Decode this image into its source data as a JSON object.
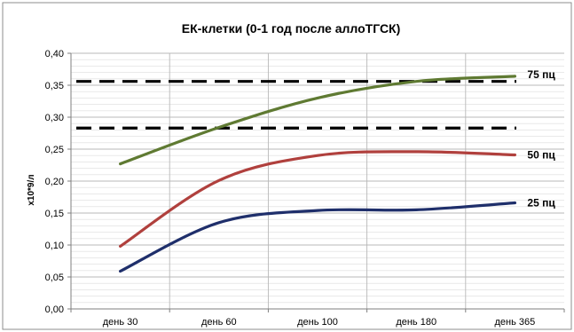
{
  "chart_data": {
    "type": "line",
    "title": "ЕК-клетки (0-1 год после аллоТГСК)",
    "xlabel": "",
    "ylabel": "x10*9/л",
    "categories": [
      "день 30",
      "день 60",
      "день 100",
      "день 180",
      "день 365"
    ],
    "ylim": [
      0,
      0.4
    ],
    "yticks": [
      "0,00",
      "0,05",
      "0,10",
      "0,15",
      "0,20",
      "0,25",
      "0,30",
      "0,35",
      "0,40"
    ],
    "grid": true,
    "series": [
      {
        "name": "25 пц",
        "color": "#1f2f6b",
        "values": [
          0.059,
          0.135,
          0.154,
          0.155,
          0.166
        ]
      },
      {
        "name": "50 пц",
        "color": "#b0403d",
        "values": [
          0.098,
          0.201,
          0.24,
          0.246,
          0.241
        ]
      },
      {
        "name": "75 пц",
        "color": "#5f7a32",
        "values": [
          0.227,
          0.284,
          0.33,
          0.356,
          0.364
        ]
      }
    ],
    "reference_lines": [
      {
        "value": 0.356,
        "style": "dashed",
        "color": "#000000"
      },
      {
        "value": 0.283,
        "style": "dashed",
        "color": "#000000"
      }
    ]
  }
}
